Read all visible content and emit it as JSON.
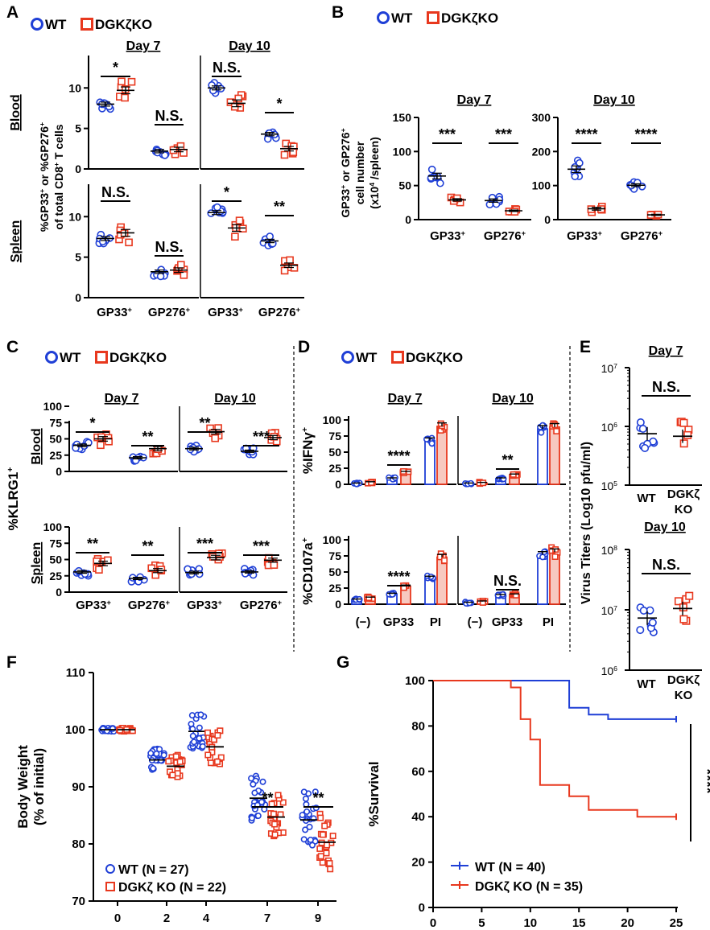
{
  "panel_labels": [
    "A",
    "B",
    "C",
    "D",
    "E",
    "F",
    "G"
  ],
  "legend": {
    "wt": "WT",
    "ko": "DGKζKO",
    "wt_color": "#1f3fd6",
    "ko_color": "#e8381e"
  },
  "common": {
    "day7": "Day 7",
    "day10": "Day 10",
    "blood": "Blood",
    "spleen": "Spleen",
    "gp33": "GP33",
    "gp276": "GP276",
    "sup_plus": "+",
    "ns": "N.S.",
    "s1": "*",
    "s2": "**",
    "s3": "***",
    "s4": "****"
  },
  "panelA": {
    "ylabel1": "%GP33",
    "ylabel2": " or %GP276",
    "ylabel3": "of total CD8",
    "ylabel4": " T cells",
    "ticks": [
      "0",
      "5",
      "10"
    ]
  },
  "panelB": {
    "ylabel1": "GP33",
    "ylabel2": " or GP276",
    "ylabel3": "cell number",
    "ylabel4": "(x10",
    "ylabel4_sup": "4",
    "ylabel4_tail": " /spleen)",
    "ticks_d7": [
      "0",
      "50",
      "100",
      "150"
    ],
    "ticks_d10": [
      "0",
      "100",
      "200",
      "300"
    ]
  },
  "panelC": {
    "ylabel": "%KLRG1",
    "ticks": [
      "0",
      "25",
      "50",
      "75",
      "100"
    ]
  },
  "panelD": {
    "ylabel_top": "%IFNγ",
    "ylabel_bot": "%CD107a",
    "ticks": [
      "0",
      "25",
      "50",
      "75",
      "100"
    ],
    "x_labels": [
      "(−)",
      "GP33",
      "PI"
    ]
  },
  "panelE": {
    "ylabel": "Virus Titers (Log10 pfu/ml)",
    "x_wt": "WT",
    "x_ko1": "DGKζ",
    "x_ko2": "KO",
    "ticks_top": [
      "10",
      "10",
      "10"
    ],
    "exp_top": [
      "5",
      "6",
      "7"
    ],
    "ticks_bot": [
      "10",
      "10",
      "10"
    ],
    "exp_bot": [
      "6",
      "7",
      "8"
    ]
  },
  "panelF": {
    "ylabel1": "Body Weight",
    "ylabel2": "(% of initial)",
    "legend_wt": "WT (N = 27)",
    "legend_ko": "DGKζ KO (N = 22)"
  },
  "panelG": {
    "ylabel": "%Survival",
    "legend_wt": "WT (N = 40)",
    "legend_ko": "DGKζ KO (N = 35)"
  },
  "chart_data": [
    {
      "panel": "A",
      "type": "scatter",
      "ylabel": "%GP33+ or %GP276+ of total CD8+ T cells",
      "ylim": [
        0,
        14
      ],
      "categories": [
        "GP33+",
        "GP276+"
      ],
      "subplots": [
        {
          "tissue": "Blood",
          "day": "Day 7",
          "means": {
            "WT": [
              8.0,
              2.2
            ],
            "DGKζKO": [
              9.7,
              2.4
            ]
          },
          "significance": [
            "*",
            "N.S."
          ]
        },
        {
          "tissue": "Blood",
          "day": "Day 10",
          "means": {
            "WT": [
              10.0,
              4.3
            ],
            "DGKζKO": [
              8.1,
              2.5
            ]
          },
          "significance": [
            "N.S.",
            "*"
          ]
        },
        {
          "tissue": "Spleen",
          "day": "Day 7",
          "means": {
            "WT": [
              7.3,
              3.2
            ],
            "DGKζKO": [
              8.0,
              3.4
            ]
          },
          "significance": [
            "N.S.",
            "N.S."
          ]
        },
        {
          "tissue": "Spleen",
          "day": "Day 10",
          "means": {
            "WT": [
              10.5,
              7.0
            ],
            "DGKζKO": [
              8.6,
              4.0
            ]
          },
          "significance": [
            "*",
            "**"
          ]
        }
      ]
    },
    {
      "panel": "B",
      "type": "scatter",
      "ylabel": "GP33+ or GP276+ cell number (x10^4 /spleen)",
      "categories": [
        "GP33+",
        "GP276+"
      ],
      "subplots": [
        {
          "day": "Day 7",
          "ylim": [
            0,
            150
          ],
          "means": {
            "WT": [
              64,
              28
            ],
            "DGKζKO": [
              29,
              13
            ]
          },
          "significance": [
            "***",
            "***"
          ]
        },
        {
          "day": "Day 10",
          "ylim": [
            0,
            300
          ],
          "means": {
            "WT": [
              148,
              101
            ],
            "DGKζKO": [
              32,
              14
            ]
          },
          "significance": [
            "****",
            "****"
          ]
        }
      ]
    },
    {
      "panel": "C",
      "type": "scatter",
      "ylabel": "%KLRG1+",
      "ylim": [
        0,
        100
      ],
      "categories": [
        "GP33+",
        "GP276+"
      ],
      "subplots": [
        {
          "tissue": "Blood",
          "day": "Day 7",
          "means": {
            "WT": [
              40,
              21
            ],
            "DGKζKO": [
              50,
              35
            ]
          },
          "significance": [
            "*",
            "**"
          ]
        },
        {
          "tissue": "Blood",
          "day": "Day 10",
          "means": {
            "WT": [
              35,
              31
            ],
            "DGKζKO": [
              61,
              52
            ]
          },
          "significance": [
            "**",
            "***"
          ]
        },
        {
          "tissue": "Spleen",
          "day": "Day 7",
          "means": {
            "WT": [
              31,
              21
            ],
            "DGKζKO": [
              44,
              33
            ]
          },
          "significance": [
            "**",
            "**"
          ]
        },
        {
          "tissue": "Spleen",
          "day": "Day 10",
          "means": {
            "WT": [
              30,
              31
            ],
            "DGKζKO": [
              53,
              49
            ]
          },
          "significance": [
            "***",
            "***"
          ]
        }
      ]
    },
    {
      "panel": "D",
      "type": "bar",
      "ylim": [
        0,
        100
      ],
      "categories": [
        "(−)",
        "GP33",
        "PI"
      ],
      "subplots": [
        {
          "measure": "%IFNγ+",
          "day": "Day 7",
          "series": [
            {
              "name": "WT",
              "values": [
                1,
                9,
                68
              ]
            },
            {
              "name": "DGKζKO",
              "values": [
                3,
                19,
                90
              ]
            }
          ],
          "significance": {
            "GP33": "****"
          }
        },
        {
          "measure": "%IFNγ+",
          "day": "Day 10",
          "series": [
            {
              "name": "WT",
              "values": [
                1,
                9,
                86
              ]
            },
            {
              "name": "DGKζKO",
              "values": [
                2,
                15,
                89
              ]
            }
          ],
          "significance": {
            "GP33": "**"
          }
        },
        {
          "measure": "%CD107a+",
          "day": "Day 7",
          "series": [
            {
              "name": "WT",
              "values": [
                7,
                16,
                41
              ]
            },
            {
              "name": "DGKζKO",
              "values": [
                10,
                28,
                73
              ]
            }
          ],
          "significance": {
            "GP33": "****"
          }
        },
        {
          "measure": "%CD107a+",
          "day": "Day 10",
          "series": [
            {
              "name": "WT",
              "values": [
                2,
                14,
                77
              ]
            },
            {
              "name": "DGKζKO",
              "values": [
                4,
                15,
                81
              ]
            }
          ],
          "significance": {
            "GP33": "N.S."
          }
        }
      ]
    },
    {
      "panel": "E",
      "type": "scatter",
      "ylabel": "Virus Titers (Log10 pfu/ml)",
      "scale": "log10",
      "categories": [
        "WT",
        "DGKζ KO"
      ],
      "subplots": [
        {
          "day": "Day 7",
          "ylim_log10": [
            5,
            7
          ],
          "means": [
            750000,
            680000
          ],
          "significance": "N.S."
        },
        {
          "day": "Day 10",
          "ylim_log10": [
            6,
            8
          ],
          "means": [
            7300000,
            10500000
          ],
          "significance": "N.S."
        }
      ]
    },
    {
      "panel": "F",
      "type": "scatter",
      "ylabel": "Body Weight (% of initial)",
      "xlabel": "",
      "ylim": [
        70,
        110
      ],
      "x": [
        0,
        2,
        4,
        7,
        9
      ],
      "series": [
        {
          "name": "WT (N = 27)",
          "values": [
            100,
            94.7,
            99.7,
            88.0,
            84.2
          ]
        },
        {
          "name": "DGKζ KO (N = 22)",
          "values": [
            100,
            93.6,
            97.0,
            84.7,
            80.3
          ]
        }
      ],
      "significance": {
        "7": "**",
        "9": "**"
      }
    },
    {
      "panel": "G",
      "type": "line",
      "ylabel": "%Survival",
      "xlim": [
        0,
        25
      ],
      "ylim": [
        0,
        100
      ],
      "series": [
        {
          "name": "WT (N = 40)",
          "steps": [
            [
              0,
              100
            ],
            [
              14,
              100
            ],
            [
              14,
              88
            ],
            [
              16,
              88
            ],
            [
              16,
              85
            ],
            [
              18,
              85
            ],
            [
              18,
              83
            ],
            [
              25,
              83
            ]
          ]
        },
        {
          "name": "DGKζ KO (N = 35)",
          "steps": [
            [
              0,
              100
            ],
            [
              8,
              100
            ],
            [
              8,
              97
            ],
            [
              9,
              97
            ],
            [
              9,
              83
            ],
            [
              10,
              83
            ],
            [
              10,
              74
            ],
            [
              11,
              74
            ],
            [
              11,
              54
            ],
            [
              14,
              54
            ],
            [
              14,
              49
            ],
            [
              16,
              49
            ],
            [
              16,
              43
            ],
            [
              21,
              43
            ],
            [
              21,
              40
            ],
            [
              25,
              40
            ]
          ]
        }
      ],
      "significance": "****"
    }
  ]
}
